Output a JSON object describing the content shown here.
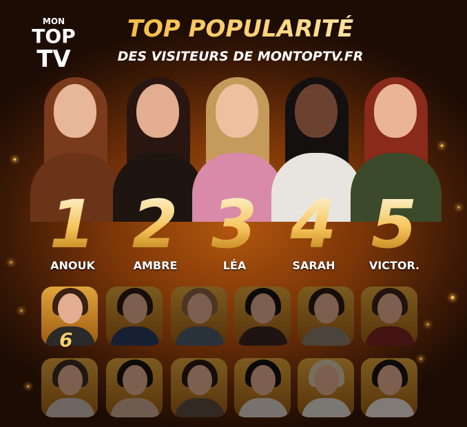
{
  "logo": {
    "line1": "MON",
    "line2": "TOP",
    "line3": "TV"
  },
  "header": {
    "title": "TOP POPULARITÉ",
    "subtitle": "DES VISITEURS DE MONTOPTV.FR"
  },
  "top5": [
    {
      "rank": "1",
      "name": "ANOUK"
    },
    {
      "rank": "2",
      "name": "AMBRE"
    },
    {
      "rank": "3",
      "name": "LÉA"
    },
    {
      "rank": "4",
      "name": "SARAH"
    },
    {
      "rank": "5",
      "name": "VICTOR."
    }
  ],
  "grid": {
    "highlight_rank": "6",
    "count": 12
  },
  "colors": {
    "gold": "#f5c45a",
    "background": "#7a3508",
    "title_gradient_start": "#f6b632",
    "title_gradient_end": "#ffe9b0"
  }
}
